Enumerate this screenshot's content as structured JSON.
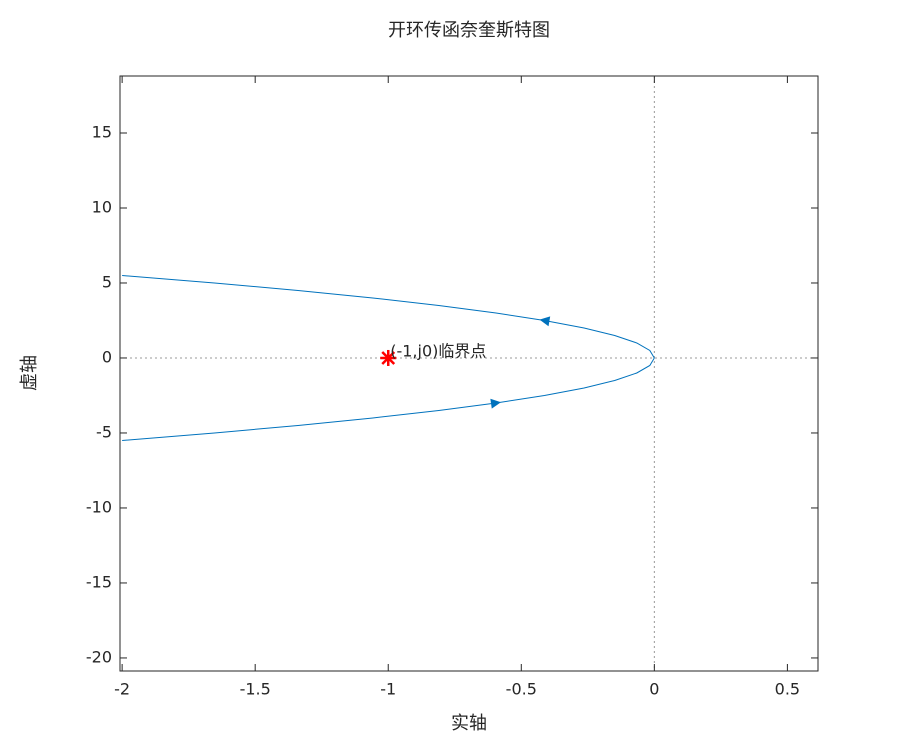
{
  "chart_data": {
    "type": "line",
    "title": "开环传函奈奎斯特图",
    "xlabel": "实轴",
    "ylabel": "虚轴",
    "series": [
      {
        "color": "#0072bd",
        "x": [
          0,
          -0.017,
          -0.066,
          -0.149,
          -0.264,
          -0.413,
          -0.595,
          -0.81,
          -1.058,
          -1.339,
          -1.653,
          -2.0
        ],
        "values": [
          0,
          0.5,
          1,
          1.5,
          2,
          2.5,
          3,
          3.5,
          4,
          4.5,
          5,
          5.5
        ]
      },
      {
        "color": "#0072bd",
        "x": [
          -2.0,
          -1.653,
          -1.339,
          -1.058,
          -0.81,
          -0.595,
          -0.413,
          -0.264,
          -0.149,
          -0.066,
          -0.017,
          0
        ],
        "values": [
          -5.5,
          -5,
          -4.5,
          -4,
          -3.5,
          -3,
          -2.5,
          -2,
          -1.5,
          -1,
          -0.5,
          0
        ]
      },
      {
        "color": "#ff0000",
        "marker": "*",
        "x": [
          -1
        ],
        "values": [
          0
        ]
      }
    ],
    "annotation": "(-1,j0)临界点",
    "xlim": [
      -2.008,
      0.615
    ],
    "ylim": [
      -20.87,
      18.8
    ],
    "xticks": [
      -2,
      -1.5,
      -1,
      -0.5,
      0,
      0.5
    ],
    "yticks": [
      -20,
      -15,
      -10,
      -5,
      0,
      5,
      10,
      15
    ],
    "grid": false
  }
}
